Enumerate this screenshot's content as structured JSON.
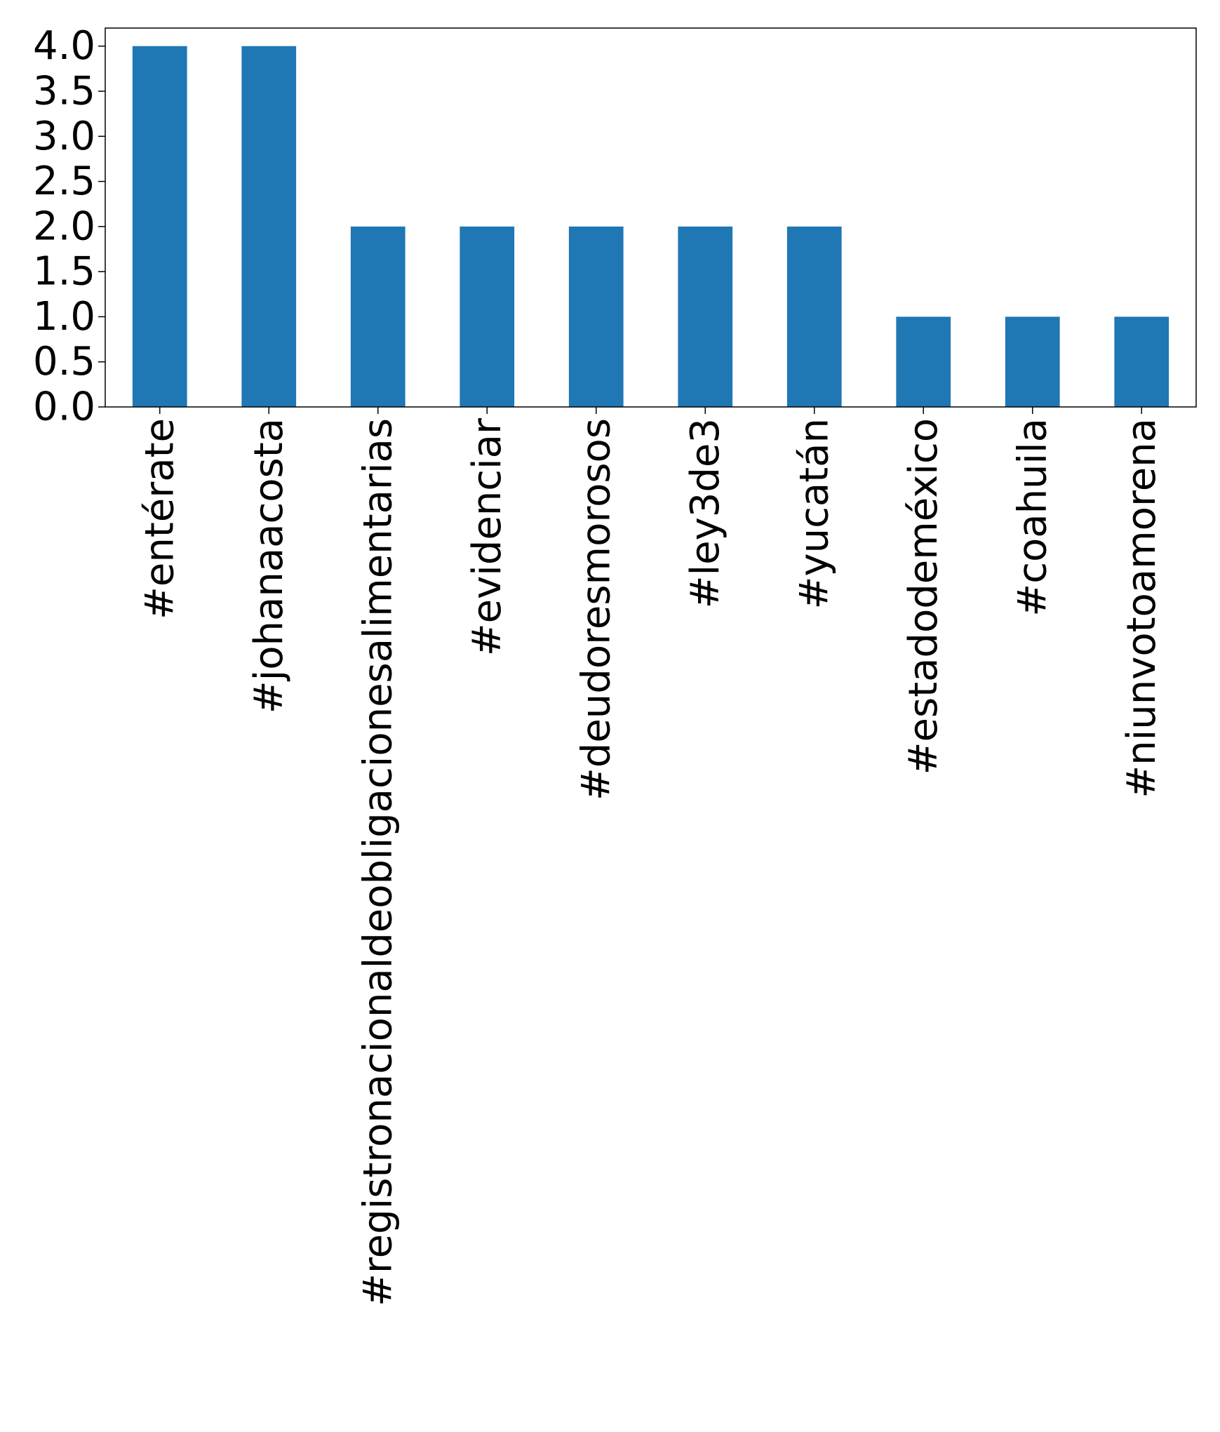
{
  "chart_data": {
    "type": "bar",
    "title": "",
    "xlabel": "",
    "ylabel": "",
    "categories": [
      "#entérate",
      "#johanaacosta",
      "#registronacionaldeobligacionesalimentarias",
      "#evidenciar",
      "#deudoresmorosos",
      "#ley3de3",
      "#yucatán",
      "#estadodeméxico",
      "#coahuila",
      "#niunvotoamorena"
    ],
    "values": [
      4,
      4,
      2,
      2,
      2,
      2,
      2,
      1,
      1,
      1
    ],
    "ylim": [
      0,
      4.2
    ],
    "yticks": [
      0.0,
      0.5,
      1.0,
      1.5,
      2.0,
      2.5,
      3.0,
      3.5,
      4.0
    ],
    "ytick_labels": [
      "0.0",
      "0.5",
      "1.0",
      "1.5",
      "2.0",
      "2.5",
      "3.0",
      "3.5",
      "4.0"
    ],
    "bar_color": "#1f77b4",
    "grid": false,
    "legend": "none"
  }
}
